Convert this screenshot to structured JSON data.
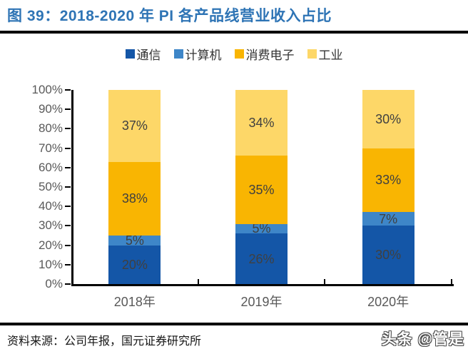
{
  "header": {
    "title": "图 39：2018-2020 年 PI 各产品线营业收入占比",
    "title_color": "#2E74B5"
  },
  "chart_data": {
    "type": "bar",
    "stacked": true,
    "title": "图 39：2018-2020 年 PI 各产品线营业收入占比",
    "categories": [
      "2018年",
      "2019年",
      "2020年"
    ],
    "series": [
      {
        "name": "通信",
        "color": "#1456A7",
        "values": [
          20,
          26,
          30
        ]
      },
      {
        "name": "计算机",
        "color": "#3E86C8",
        "values": [
          5,
          5,
          7
        ]
      },
      {
        "name": "消费电子",
        "color": "#F9B502",
        "values": [
          38,
          35,
          33
        ]
      },
      {
        "name": "工业",
        "color": "#FDD768",
        "values": [
          37,
          34,
          30
        ]
      }
    ],
    "xlabel": "",
    "ylabel": "",
    "ylim": [
      0,
      100
    ],
    "ytick_step": 10,
    "ytick_suffix": "%",
    "grid": false,
    "legend_position": "top",
    "data_labels": true,
    "data_label_suffix": "%"
  },
  "footer": {
    "source": "资料来源：公司年报，国元证券研究所",
    "watermark": "头条 @管是"
  }
}
